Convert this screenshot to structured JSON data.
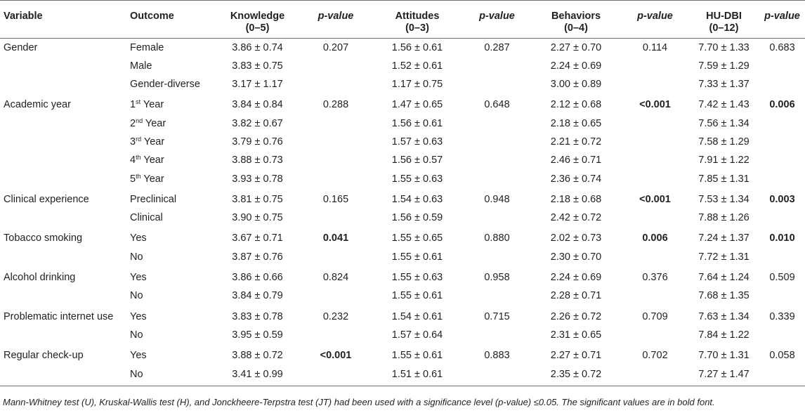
{
  "headers": {
    "variable": "Variable",
    "outcome": "Outcome",
    "knowledge": "Knowledge",
    "knowledge_range": "(0–5)",
    "pvalue": "p-value",
    "attitudes": "Attitudes",
    "attitudes_range": "(0–3)",
    "behaviors": "Behaviors",
    "behaviors_range": "(0–4)",
    "hudbi": "HU-DBI",
    "hudbi_range": "(0–12)"
  },
  "rows": [
    {
      "variable": "Gender",
      "outcome": "Female",
      "outcome_sup": "",
      "outcome_rest": "",
      "knowledge": "3.86 ± 0.74",
      "k_p": "0.207",
      "attitudes": "1.56 ± 0.61",
      "a_p": "0.287",
      "behaviors": "2.27 ± 0.70",
      "b_p": "0.114",
      "hudbi": "7.70 ± 1.33",
      "h_p": "0.683"
    },
    {
      "variable": "",
      "outcome": "Male",
      "outcome_sup": "",
      "outcome_rest": "",
      "knowledge": "3.83 ± 0.75",
      "k_p": "",
      "attitudes": "1.52 ± 0.61",
      "a_p": "",
      "behaviors": "2.24 ± 0.69",
      "b_p": "",
      "hudbi": "7.59 ± 1.29",
      "h_p": ""
    },
    {
      "variable": "",
      "outcome": "Gender-diverse",
      "outcome_sup": "",
      "outcome_rest": "",
      "knowledge": "3.17 ± 1.17",
      "k_p": "",
      "attitudes": "1.17 ± 0.75",
      "a_p": "",
      "behaviors": "3.00 ± 0.89",
      "b_p": "",
      "hudbi": "7.33 ± 1.37",
      "h_p": ""
    },
    {
      "variable": "Academic year",
      "outcome": "1",
      "outcome_sup": "st",
      "outcome_rest": " Year",
      "knowledge": "3.84 ± 0.84",
      "k_p": "0.288",
      "attitudes": "1.47 ± 0.65",
      "a_p": "0.648",
      "behaviors": "2.12 ± 0.68",
      "b_p": "<0.001",
      "hudbi": "7.42 ± 1.43",
      "h_p": "0.006"
    },
    {
      "variable": "",
      "outcome": "2",
      "outcome_sup": "nd",
      "outcome_rest": " Year",
      "knowledge": "3.82 ± 0.67",
      "k_p": "",
      "attitudes": "1.56 ± 0.61",
      "a_p": "",
      "behaviors": "2.18 ± 0.65",
      "b_p": "",
      "hudbi": "7.56 ± 1.34",
      "h_p": ""
    },
    {
      "variable": "",
      "outcome": "3",
      "outcome_sup": "rd",
      "outcome_rest": " Year",
      "knowledge": "3.79 ± 0.76",
      "k_p": "",
      "attitudes": "1.57 ± 0.63",
      "a_p": "",
      "behaviors": "2.21 ± 0.72",
      "b_p": "",
      "hudbi": "7.58 ± 1.29",
      "h_p": ""
    },
    {
      "variable": "",
      "outcome": "4",
      "outcome_sup": "th",
      "outcome_rest": " Year",
      "knowledge": "3.88 ± 0.73",
      "k_p": "",
      "attitudes": "1.56 ± 0.57",
      "a_p": "",
      "behaviors": "2.46 ± 0.71",
      "b_p": "",
      "hudbi": "7.91 ± 1.22",
      "h_p": ""
    },
    {
      "variable": "",
      "outcome": "5",
      "outcome_sup": "th",
      "outcome_rest": " Year",
      "knowledge": "3.93 ± 0.78",
      "k_p": "",
      "attitudes": "1.55 ± 0.63",
      "a_p": "",
      "behaviors": "2.36 ± 0.74",
      "b_p": "",
      "hudbi": "7.85 ± 1.31",
      "h_p": ""
    },
    {
      "variable": "Clinical experience",
      "outcome": "Preclinical",
      "outcome_sup": "",
      "outcome_rest": "",
      "knowledge": "3.81 ± 0.75",
      "k_p": "0.165",
      "attitudes": "1.54 ± 0.63",
      "a_p": "0.948",
      "behaviors": "2.18 ± 0.68",
      "b_p": "<0.001",
      "hudbi": "7.53 ± 1.34",
      "h_p": "0.003"
    },
    {
      "variable": "",
      "outcome": "Clinical",
      "outcome_sup": "",
      "outcome_rest": "",
      "knowledge": "3.90 ± 0.75",
      "k_p": "",
      "attitudes": "1.56 ± 0.59",
      "a_p": "",
      "behaviors": "2.42 ± 0.72",
      "b_p": "",
      "hudbi": "7.88 ± 1.26",
      "h_p": ""
    },
    {
      "variable": "Tobacco smoking",
      "outcome": "Yes",
      "outcome_sup": "",
      "outcome_rest": "",
      "knowledge": "3.67 ± 0.71",
      "k_p": "0.041",
      "attitudes": "1.55 ± 0.65",
      "a_p": "0.880",
      "behaviors": "2.02 ± 0.73",
      "b_p": "0.006",
      "hudbi": "7.24 ± 1.37",
      "h_p": "0.010"
    },
    {
      "variable": "",
      "outcome": "No",
      "outcome_sup": "",
      "outcome_rest": "",
      "knowledge": "3.87 ± 0.76",
      "k_p": "",
      "attitudes": "1.55 ± 0.61",
      "a_p": "",
      "behaviors": "2.30 ± 0.70",
      "b_p": "",
      "hudbi": "7.72 ± 1.31",
      "h_p": ""
    },
    {
      "variable": "Alcohol drinking",
      "outcome": "Yes",
      "outcome_sup": "",
      "outcome_rest": "",
      "knowledge": "3.86 ± 0.66",
      "k_p": "0.824",
      "attitudes": "1.55 ± 0.63",
      "a_p": "0.958",
      "behaviors": "2.24 ± 0.69",
      "b_p": "0.376",
      "hudbi": "7.64 ± 1.24",
      "h_p": "0.509"
    },
    {
      "variable": "",
      "outcome": "No",
      "outcome_sup": "",
      "outcome_rest": "",
      "knowledge": "3.84 ± 0.79",
      "k_p": "",
      "attitudes": "1.55 ± 0.61",
      "a_p": "",
      "behaviors": "2.28 ± 0.71",
      "b_p": "",
      "hudbi": "7.68 ± 1.35",
      "h_p": ""
    },
    {
      "variable": "Problematic internet use",
      "outcome": "Yes",
      "outcome_sup": "",
      "outcome_rest": "",
      "knowledge": "3.83 ± 0.78",
      "k_p": "0.232",
      "attitudes": "1.54 ± 0.61",
      "a_p": "0.715",
      "behaviors": "2.26 ± 0.72",
      "b_p": "0.709",
      "hudbi": "7.63 ± 1.34",
      "h_p": "0.339"
    },
    {
      "variable": "",
      "outcome": "No",
      "outcome_sup": "",
      "outcome_rest": "",
      "knowledge": "3.95 ± 0.59",
      "k_p": "",
      "attitudes": "1.57 ± 0.64",
      "a_p": "",
      "behaviors": "2.31 ± 0.65",
      "b_p": "",
      "hudbi": "7.84 ± 1.22",
      "h_p": ""
    },
    {
      "variable": "Regular check-up",
      "outcome": "Yes",
      "outcome_sup": "",
      "outcome_rest": "",
      "knowledge": "3.88 ± 0.72",
      "k_p": "<0.001",
      "attitudes": "1.55 ± 0.61",
      "a_p": "0.883",
      "behaviors": "2.27 ± 0.71",
      "b_p": "0.702",
      "hudbi": "7.70 ± 1.31",
      "h_p": "0.058"
    },
    {
      "variable": "",
      "outcome": "No",
      "outcome_sup": "",
      "outcome_rest": "",
      "knowledge": "3.41 ± 0.99",
      "k_p": "",
      "attitudes": "1.51 ± 0.61",
      "a_p": "",
      "behaviors": "2.35 ± 0.72",
      "b_p": "",
      "hudbi": "7.27 ± 1.47",
      "h_p": ""
    }
  ],
  "significant": [
    "0.041",
    "<0.001",
    "0.006",
    "0.003",
    "0.010"
  ],
  "footnote": "Mann-Whitney test (U), Kruskal-Wallis test (H), and Jonckheere-Terpstra test (JT) had been used with a significance level (p-value) ≤0.05. The significant values are in bold font."
}
